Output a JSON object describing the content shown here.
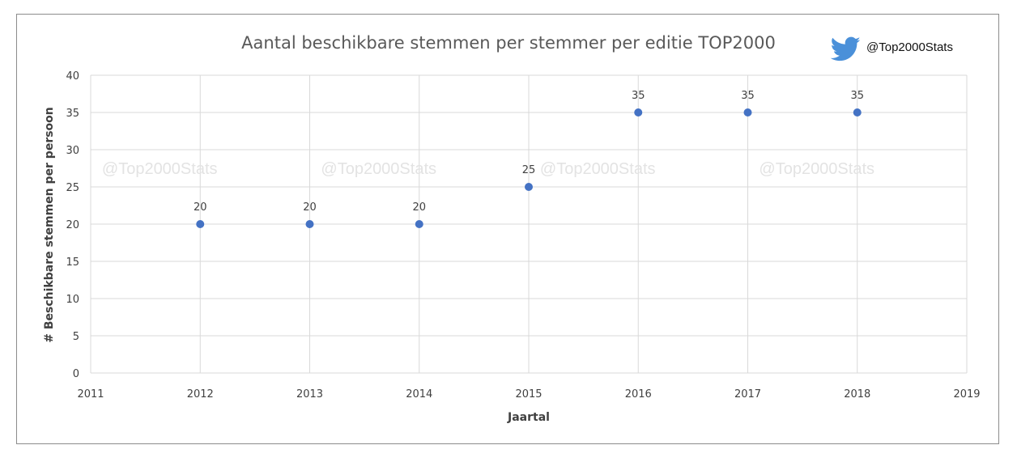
{
  "brand": {
    "handle": "@Top2000Stats",
    "icon": "twitter-bird-icon",
    "icon_color": "#4a90d9"
  },
  "watermark": "@Top2000Stats",
  "chart_data": {
    "type": "scatter",
    "title": "Aantal beschikbare stemmen per stemmer per editie TOP2000",
    "xlabel": "Jaartal",
    "ylabel": "# Beschikbare stemmen per persoon",
    "xlim": [
      2011,
      2019
    ],
    "ylim": [
      0,
      40
    ],
    "x_ticks": [
      2011,
      2012,
      2013,
      2014,
      2015,
      2016,
      2017,
      2018,
      2019
    ],
    "y_ticks": [
      0,
      5,
      10,
      15,
      20,
      25,
      30,
      35,
      40
    ],
    "grid": true,
    "marker_color": "#4472c4",
    "series": [
      {
        "x": [
          2012,
          2013,
          2014,
          2015,
          2016,
          2017,
          2018
        ],
        "y": [
          20,
          20,
          20,
          25,
          35,
          35,
          35
        ],
        "data_labels": [
          "20",
          "20",
          "20",
          "25",
          "35",
          "35",
          "35"
        ]
      }
    ]
  }
}
